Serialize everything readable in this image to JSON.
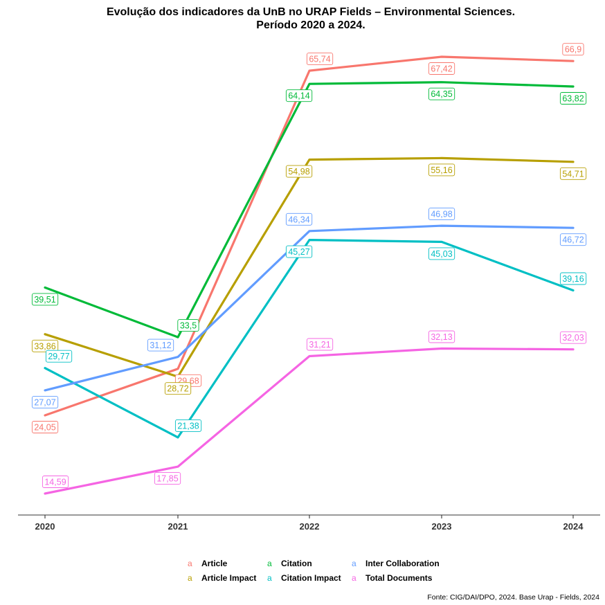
{
  "chart_data": {
    "type": "line",
    "title": "Evolução dos indicadores da UnB no URAP Fields – Environmental Sciences.",
    "subtitle": "Período 2020 a 2024.",
    "xlabel": "",
    "ylabel": "",
    "x": [
      "2020",
      "2021",
      "2022",
      "2023",
      "2024"
    ],
    "grid": false,
    "legend_position": "bottom",
    "legend_key_glyph": "a",
    "source": "Fonte: CIG/DAI/DPO, 2024. Base Urap - Fields, 2024",
    "series": [
      {
        "name": "Article",
        "color": "#F8766D",
        "values": [
          24.05,
          29.68,
          65.74,
          67.42,
          66.9
        ],
        "labels": [
          "24,05",
          "29,68",
          "65,74",
          "67,42",
          "66,9"
        ]
      },
      {
        "name": "Article Impact",
        "color": "#B79F00",
        "values": [
          33.86,
          28.72,
          54.98,
          55.16,
          54.71
        ],
        "labels": [
          "33,86",
          "28,72",
          "54,98",
          "55,16",
          "54,71"
        ]
      },
      {
        "name": "Citation",
        "color": "#00BA38",
        "values": [
          39.51,
          33.5,
          64.14,
          64.35,
          63.82
        ],
        "labels": [
          "39,51",
          "33,5",
          "64,14",
          "64,35",
          "63,82"
        ]
      },
      {
        "name": "Citation Impact",
        "color": "#00BFC4",
        "values": [
          29.77,
          21.38,
          45.27,
          45.03,
          39.16
        ],
        "labels": [
          "29,77",
          "21,38",
          "45,27",
          "45,03",
          "39,16"
        ]
      },
      {
        "name": "Inter Collaboration",
        "color": "#619CFF",
        "values": [
          27.07,
          31.12,
          46.34,
          46.98,
          46.72
        ],
        "labels": [
          "27,07",
          "31,12",
          "46,34",
          "46,98",
          "46,72"
        ]
      },
      {
        "name": "Total Documents",
        "color": "#F564E3",
        "values": [
          14.59,
          17.85,
          31.21,
          32.13,
          32.03
        ],
        "labels": [
          "14,59",
          "17,85",
          "31,21",
          "32,13",
          "32,03"
        ]
      }
    ]
  }
}
